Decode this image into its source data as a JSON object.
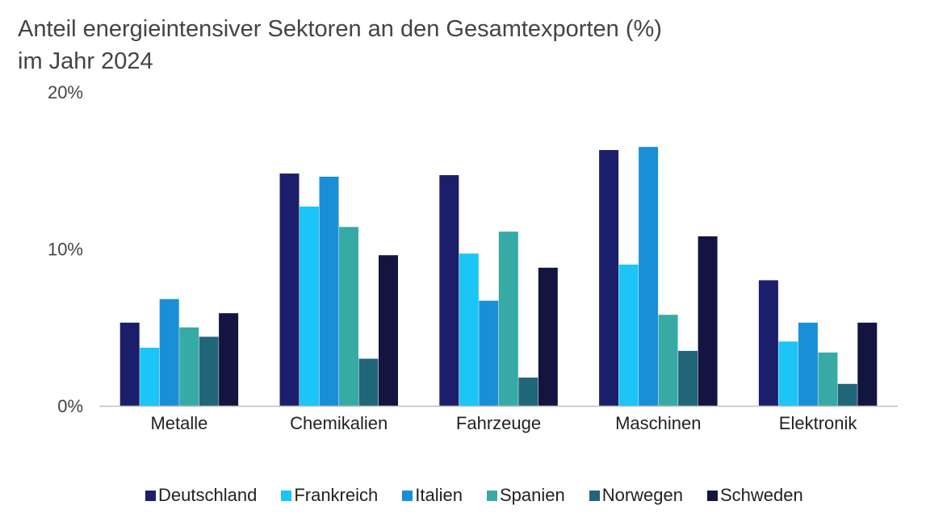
{
  "chart_data": {
    "type": "bar",
    "title": "Anteil energieintensiver Sektoren an den Gesamtexporten (%)",
    "subtitle": "im Jahr 2024",
    "categories": [
      "Metalle",
      "Chemikalien",
      "Fahrzeuge",
      "Maschinen",
      "Elektronik"
    ],
    "series": [
      {
        "name": "Deutschland",
        "color": "#1b1f6b",
        "values": [
          5.3,
          14.8,
          14.7,
          16.3,
          8.0
        ]
      },
      {
        "name": "Frankreich",
        "color": "#1bc5f5",
        "values": [
          3.7,
          12.7,
          9.7,
          9.0,
          4.1
        ]
      },
      {
        "name": "Italien",
        "color": "#1a8fd8",
        "values": [
          6.8,
          14.6,
          6.7,
          16.5,
          5.3
        ]
      },
      {
        "name": "Spanien",
        "color": "#37aaa6",
        "values": [
          5.0,
          11.4,
          11.1,
          5.8,
          3.4
        ]
      },
      {
        "name": "Norwegen",
        "color": "#216579",
        "values": [
          4.4,
          3.0,
          1.8,
          3.5,
          1.4
        ]
      },
      {
        "name": "Schweden",
        "color": "#141440",
        "values": [
          5.9,
          9.6,
          8.8,
          10.8,
          5.3
        ]
      }
    ],
    "yticks": [
      "0%",
      "10%",
      "20%"
    ],
    "ylim": [
      0,
      20
    ],
    "grid": false,
    "legend_position": "bottom"
  }
}
